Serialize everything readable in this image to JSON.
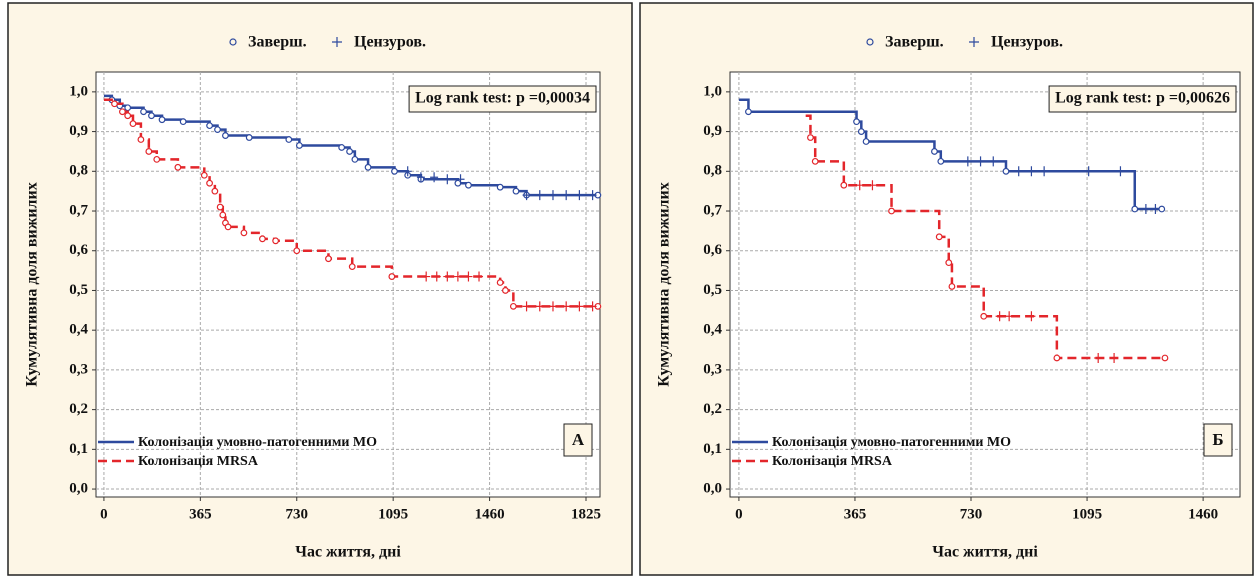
{
  "chart_data": [
    {
      "type": "step",
      "legend_markers": [
        "Заверш.",
        "Цензуров."
      ],
      "annotation": "Log rank test: p =0,00034",
      "panel_label": "А",
      "xlabel": "Час життя, дні",
      "ylabel": "Кумулятивна доля вижилих",
      "xlim": [
        -30,
        1878
      ],
      "ylim": [
        -0.02,
        1.05
      ],
      "xticks": [
        0,
        365,
        730,
        1095,
        1460,
        1825
      ],
      "yticks": [
        {
          "value": 0,
          "label": "0,0"
        },
        {
          "value": 0.1,
          "label": "0,1"
        },
        {
          "value": 0.2,
          "label": "0,2"
        },
        {
          "value": 0.3,
          "label": "0,3"
        },
        {
          "value": 0.4,
          "label": "0,4"
        },
        {
          "value": 0.5,
          "label": "0,5"
        },
        {
          "value": 0.6,
          "label": "0,6"
        },
        {
          "value": 0.7,
          "label": "0,7"
        },
        {
          "value": 0.8,
          "label": "0,8"
        },
        {
          "value": 0.9,
          "label": "0,9"
        },
        {
          "value": 1,
          "label": "1,0"
        }
      ],
      "grid": true,
      "series": [
        {
          "name": "Колонізація умовно-патогенними МО",
          "color": "#2e4a9e",
          "dash": false,
          "x": [
            0,
            30,
            60,
            90,
            150,
            180,
            220,
            300,
            400,
            430,
            460,
            550,
            700,
            740,
            900,
            930,
            950,
            1000,
            1100,
            1150,
            1200,
            1340,
            1380,
            1500,
            1560,
            1600,
            1870
          ],
          "values": [
            0.99,
            0.98,
            0.965,
            0.96,
            0.95,
            0.94,
            0.93,
            0.925,
            0.915,
            0.905,
            0.89,
            0.885,
            0.88,
            0.865,
            0.86,
            0.85,
            0.83,
            0.81,
            0.8,
            0.79,
            0.78,
            0.77,
            0.765,
            0.76,
            0.75,
            0.74,
            0.74
          ],
          "censored": {
            "x": [
              1150,
              1200,
              1250,
              1300,
              1350,
              1600,
              1650,
              1700,
              1750,
              1800,
              1850
            ],
            "values": [
              0.8,
              0.785,
              0.785,
              0.78,
              0.78,
              0.74,
              0.74,
              0.74,
              0.74,
              0.74,
              0.74
            ]
          }
        },
        {
          "name": "Колонізація MRSA",
          "color": "#e3262b",
          "dash": true,
          "x": [
            0,
            40,
            70,
            90,
            110,
            140,
            170,
            200,
            280,
            380,
            400,
            420,
            440,
            450,
            460,
            470,
            530,
            600,
            650,
            730,
            850,
            940,
            1090,
            1500,
            1520,
            1550,
            1870
          ],
          "values": [
            0.98,
            0.97,
            0.95,
            0.94,
            0.92,
            0.88,
            0.85,
            0.83,
            0.81,
            0.79,
            0.77,
            0.75,
            0.71,
            0.69,
            0.67,
            0.66,
            0.645,
            0.63,
            0.625,
            0.6,
            0.58,
            0.56,
            0.535,
            0.52,
            0.5,
            0.46,
            0.46
          ],
          "censored": {
            "x": [
              1220,
              1260,
              1300,
              1340,
              1380,
              1420,
              1600,
              1650,
              1700,
              1750,
              1800,
              1850
            ],
            "values": [
              0.535,
              0.535,
              0.535,
              0.535,
              0.535,
              0.535,
              0.46,
              0.46,
              0.46,
              0.46,
              0.46,
              0.46
            ]
          }
        }
      ]
    },
    {
      "type": "step",
      "legend_markers": [
        "Заверш.",
        "Цензуров."
      ],
      "annotation": "Log rank test: p =0,00626",
      "panel_label": "Б",
      "xlabel": "Час життя, дні",
      "ylabel": "Кумулятивна доля вижилих",
      "xlim": [
        -28,
        1576
      ],
      "ylim": [
        -0.02,
        1.05
      ],
      "xticks": [
        0,
        365,
        730,
        1095,
        1460
      ],
      "yticks": [
        {
          "value": 0,
          "label": "0,0"
        },
        {
          "value": 0.1,
          "label": "0,1"
        },
        {
          "value": 0.2,
          "label": "0,2"
        },
        {
          "value": 0.3,
          "label": "0,3"
        },
        {
          "value": 0.4,
          "label": "0,4"
        },
        {
          "value": 0.5,
          "label": "0,5"
        },
        {
          "value": 0.6,
          "label": "0,6"
        },
        {
          "value": 0.7,
          "label": "0,7"
        },
        {
          "value": 0.8,
          "label": "0,8"
        },
        {
          "value": 0.9,
          "label": "0,9"
        },
        {
          "value": 1,
          "label": "1,0"
        }
      ],
      "grid": true,
      "series": [
        {
          "name": "Колонізація умовно-патогенними МО",
          "color": "#2e4a9e",
          "dash": false,
          "x": [
            0,
            30,
            370,
            385,
            400,
            615,
            635,
            840,
            1245,
            1330
          ],
          "values": [
            0.98,
            0.95,
            0.925,
            0.9,
            0.875,
            0.85,
            0.825,
            0.8,
            0.705,
            0.705
          ],
          "censored": {
            "x": [
              720,
              760,
              800,
              880,
              920,
              960,
              1100,
              1200,
              1280,
              1310
            ],
            "values": [
              0.825,
              0.825,
              0.825,
              0.8,
              0.8,
              0.8,
              0.8,
              0.8,
              0.705,
              0.705
            ]
          }
        },
        {
          "name": "Колонізація MRSA",
          "color": "#e3262b",
          "dash": true,
          "x": [
            210,
            225,
            240,
            330,
            480,
            630,
            660,
            670,
            770,
            1000,
            1340
          ],
          "values": [
            0.94,
            0.885,
            0.825,
            0.765,
            0.7,
            0.635,
            0.57,
            0.51,
            0.435,
            0.33,
            0.33
          ],
          "censored": {
            "x": [
              380,
              420,
              820,
              850,
              920,
              1130,
              1180
            ],
            "values": [
              0.765,
              0.765,
              0.435,
              0.435,
              0.435,
              0.33,
              0.33
            ]
          }
        }
      ]
    }
  ]
}
